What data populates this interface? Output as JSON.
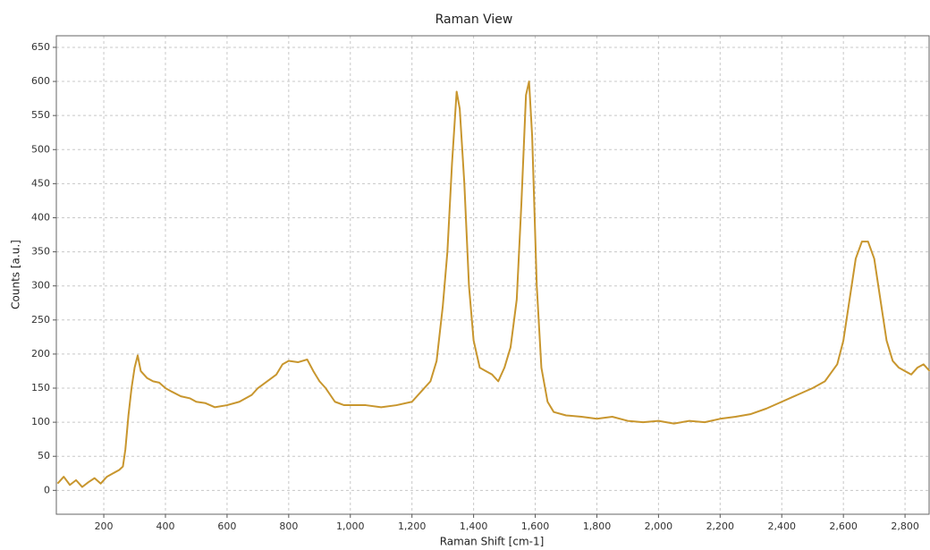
{
  "chart_data": {
    "type": "line",
    "title": "Raman View",
    "x_label": "Raman Shift [cm-1]",
    "y_label": "Counts [a.u.]",
    "x": [
      50,
      70,
      90,
      110,
      130,
      150,
      170,
      190,
      210,
      230,
      250,
      262,
      270,
      280,
      290,
      300,
      310,
      320,
      340,
      360,
      380,
      400,
      420,
      450,
      480,
      500,
      530,
      560,
      600,
      640,
      680,
      700,
      730,
      760,
      780,
      800,
      830,
      860,
      880,
      900,
      920,
      950,
      980,
      1000,
      1050,
      1100,
      1150,
      1200,
      1230,
      1260,
      1280,
      1300,
      1315,
      1330,
      1345,
      1355,
      1370,
      1385,
      1400,
      1420,
      1440,
      1460,
      1480,
      1500,
      1520,
      1540,
      1555,
      1570,
      1580,
      1590,
      1605,
      1620,
      1640,
      1660,
      1700,
      1750,
      1800,
      1850,
      1900,
      1950,
      2000,
      2050,
      2100,
      2150,
      2200,
      2250,
      2300,
      2350,
      2400,
      2450,
      2500,
      2540,
      2580,
      2600,
      2620,
      2640,
      2660,
      2680,
      2700,
      2720,
      2740,
      2760,
      2780,
      2800,
      2820,
      2840,
      2860,
      2880
    ],
    "series": [
      {
        "name": "Raman",
        "color": "#c8962e",
        "values": [
          10,
          20,
          8,
          15,
          5,
          12,
          18,
          10,
          20,
          25,
          30,
          35,
          60,
          110,
          150,
          180,
          198,
          175,
          165,
          160,
          158,
          150,
          145,
          138,
          135,
          130,
          128,
          122,
          125,
          130,
          140,
          150,
          160,
          170,
          185,
          190,
          188,
          192,
          175,
          160,
          150,
          130,
          125,
          125,
          125,
          122,
          125,
          130,
          145,
          160,
          190,
          270,
          350,
          480,
          585,
          560,
          450,
          300,
          220,
          180,
          175,
          170,
          160,
          180,
          210,
          280,
          420,
          580,
          600,
          520,
          300,
          180,
          130,
          115,
          110,
          108,
          105,
          108,
          102,
          100,
          102,
          98,
          102,
          100,
          105,
          108,
          112,
          120,
          130,
          140,
          150,
          160,
          185,
          220,
          280,
          340,
          365,
          365,
          340,
          280,
          220,
          190,
          180,
          175,
          170,
          180,
          185,
          175
        ]
      }
    ],
    "xlim": [
      46,
      2881
    ],
    "ylim": [
      -35,
      667
    ],
    "xticks": [
      200,
      400,
      600,
      800,
      {
        "value": 1000,
        "label": "1,000"
      },
      {
        "value": 1200,
        "label": "1,200"
      },
      {
        "value": 1400,
        "label": "1,400"
      },
      {
        "value": 1600,
        "label": "1,600"
      },
      {
        "value": 1800,
        "label": "1,800"
      },
      {
        "value": 2000,
        "label": "2,000"
      },
      {
        "value": 2200,
        "label": "2,200"
      },
      {
        "value": 2400,
        "label": "2,400"
      },
      {
        "value": 2600,
        "label": "2,600"
      },
      {
        "value": 2800,
        "label": "2,800"
      }
    ],
    "yticks": [
      0,
      50,
      100,
      150,
      200,
      250,
      300,
      350,
      400,
      450,
      500,
      550,
      600,
      650
    ],
    "grid": true
  }
}
